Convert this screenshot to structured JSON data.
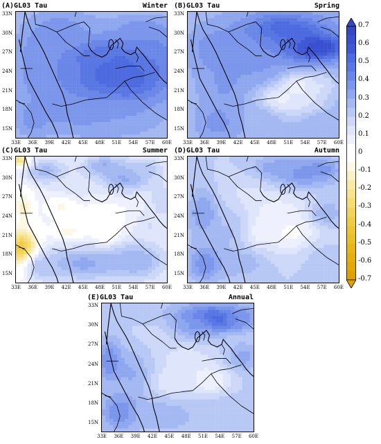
{
  "colors": {
    "pos": [
      "#ffffff",
      "#eef1fd",
      "#dfe6fb",
      "#cdd8f8",
      "#b8c8f5",
      "#a4b8f1",
      "#8fa7ee",
      "#7b96ea",
      "#6a87e7",
      "#5977e3",
      "#4d6adf",
      "#3f59d6",
      "#3a4fcf",
      "#3448c6"
    ],
    "neg": [
      "#ffffff",
      "#fdf8e4",
      "#fbf1c7",
      "#f9eaa9",
      "#f7e38d",
      "#f5dc73",
      "#f3d45b",
      "#f0cc45",
      "#eec434",
      "#ebbd26",
      "#e9b51a",
      "#e6ae10",
      "#e3a708",
      "#e0a000"
    ]
  },
  "panels": [
    {
      "label": "(A)GL03 Tau",
      "season": "Winter"
    },
    {
      "label": "(B)GL03 Tau",
      "season": "Spring"
    },
    {
      "label": "(C)GL03 Tau",
      "season": "Summer"
    },
    {
      "label": "(D)GL03 Tau",
      "season": "Autumn"
    },
    {
      "label": "(E)GL03 Tau",
      "season": "Annual"
    }
  ],
  "lon_ticks": [
    "33E",
    "36E",
    "39E",
    "42E",
    "45E",
    "48E",
    "51E",
    "54E",
    "57E",
    "60E"
  ],
  "lat_ticks": [
    "33N",
    "30N",
    "27N",
    "24N",
    "21N",
    "18N",
    "15N"
  ],
  "colorbar": {
    "labels": [
      "0.7",
      "0.6",
      "0.5",
      "0.4",
      "0.3",
      "0.2",
      "0.1",
      "0",
      "-0.1",
      "-0.2",
      "-0.3",
      "-0.4",
      "-0.5",
      "-0.6",
      "-0.7"
    ]
  }
}
